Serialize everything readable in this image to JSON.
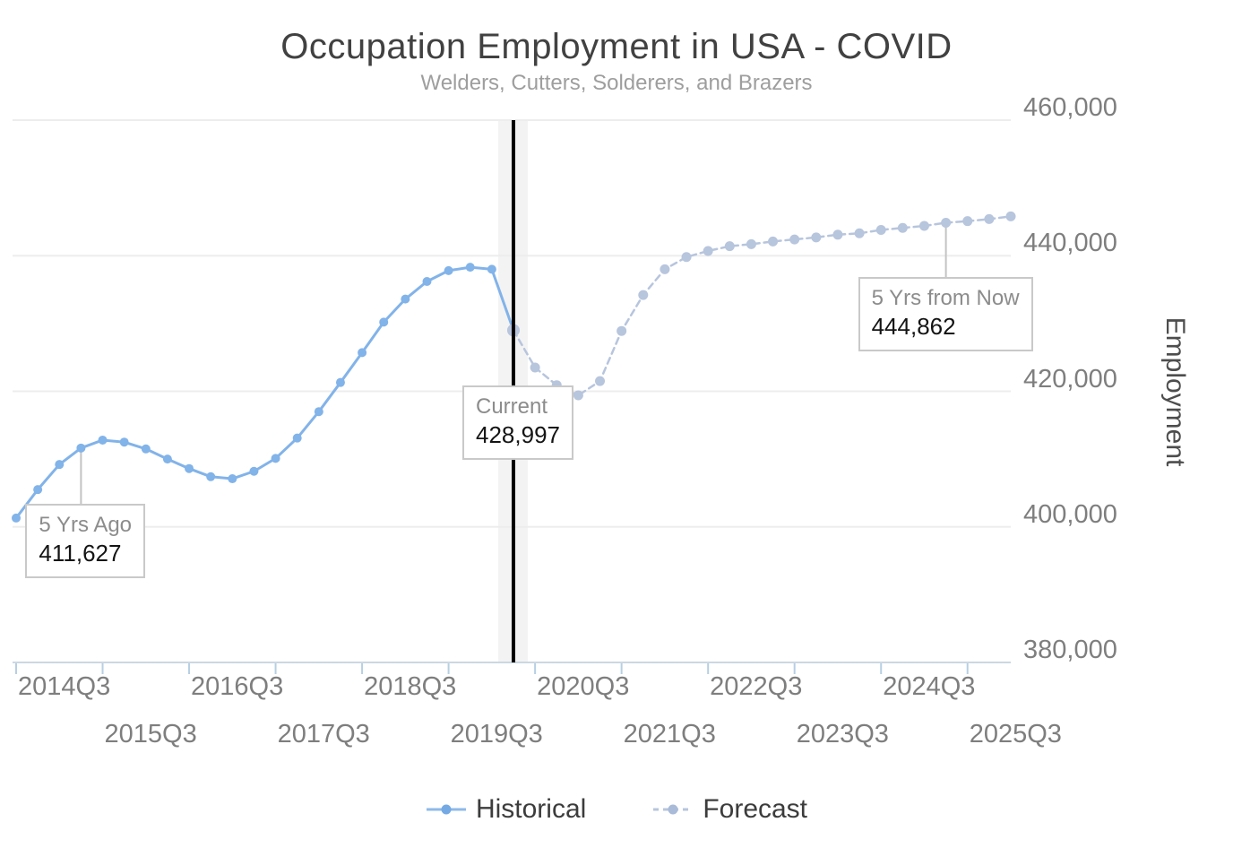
{
  "title": "Occupation Employment in USA - COVID",
  "subtitle": "Welders, Cutters, Solderers, and Brazers",
  "y_axis": {
    "title": "Employment",
    "ticks": [
      {
        "value": 380000,
        "label": "380,000"
      },
      {
        "value": 400000,
        "label": "400,000"
      },
      {
        "value": 420000,
        "label": "420,000"
      },
      {
        "value": 440000,
        "label": "440,000"
      },
      {
        "value": 460000,
        "label": "460,000"
      }
    ]
  },
  "x_axis": {
    "labels": [
      "2014Q3",
      "2015Q3",
      "2016Q3",
      "2017Q3",
      "2018Q3",
      "2019Q3",
      "2020Q3",
      "2021Q3",
      "2022Q3",
      "2023Q3",
      "2024Q3",
      "2025Q3"
    ]
  },
  "legend": [
    {
      "label": "Historical",
      "style": "solid",
      "color": "#82b3e9"
    },
    {
      "label": "Forecast",
      "style": "dashed",
      "color": "#b7c5dd"
    }
  ],
  "annotations": [
    {
      "id": "five-yrs-ago",
      "label": "5 Yrs Ago",
      "value": "411,627",
      "value_num": 411627,
      "anchor_index": 3
    },
    {
      "id": "current",
      "label": "Current",
      "value": "428,997",
      "value_num": 428997,
      "anchor_index": 23
    },
    {
      "id": "five-yrs-from-now",
      "label": "5 Yrs from Now",
      "value": "444,862",
      "value_num": 444862,
      "anchor_index": 43
    }
  ],
  "colors": {
    "historical_line": "#82b3e9",
    "forecast_line": "#b7c5dd",
    "gridline": "#ededed",
    "axis_line": "#ccd8e2",
    "axis_tick": "#b7cfe3",
    "current_band": "#f3f3f3",
    "current_line": "#000000",
    "leader_line": "#c3c3c3"
  },
  "chart_data": {
    "type": "line",
    "title": "Occupation Employment in USA - COVID",
    "subtitle": "Welders, Cutters, Solderers, and Brazers",
    "xlabel": "",
    "ylabel": "Employment",
    "ylim": [
      380000,
      460000
    ],
    "ytick_step": 20000,
    "grid": true,
    "legend_position": "bottom",
    "current_index": 23,
    "x_quarters": [
      "2014Q3",
      "2014Q4",
      "2015Q1",
      "2015Q2",
      "2015Q3",
      "2015Q4",
      "2016Q1",
      "2016Q2",
      "2016Q3",
      "2016Q4",
      "2017Q1",
      "2017Q2",
      "2017Q3",
      "2017Q4",
      "2018Q1",
      "2018Q2",
      "2018Q3",
      "2018Q4",
      "2019Q1",
      "2019Q2",
      "2019Q3",
      "2019Q4",
      "2020Q1",
      "2020Q2",
      "2020Q3",
      "2020Q4",
      "2021Q1",
      "2021Q2",
      "2021Q3",
      "2021Q4",
      "2022Q1",
      "2022Q2",
      "2022Q3",
      "2022Q4",
      "2023Q1",
      "2023Q2",
      "2023Q3",
      "2023Q4",
      "2024Q1",
      "2024Q2",
      "2024Q3",
      "2024Q4",
      "2025Q1",
      "2025Q2",
      "2025Q3",
      "2025Q4",
      "2026Q1"
    ],
    "series": [
      {
        "name": "Historical",
        "style": "solid",
        "color": "#82b3e9",
        "start_index": 0,
        "values": [
          401300,
          405500,
          409200,
          411627,
          412800,
          412500,
          411500,
          410000,
          408600,
          407400,
          407100,
          408200,
          410100,
          413100,
          417000,
          421300,
          425700,
          430200,
          433600,
          436200,
          437800,
          438300,
          438000,
          428997
        ]
      },
      {
        "name": "Forecast",
        "style": "dashed",
        "color": "#b7c5dd",
        "start_index": 23,
        "values": [
          428997,
          423500,
          420900,
          419400,
          421500,
          428900,
          434200,
          438000,
          439800,
          440700,
          441400,
          441700,
          442100,
          442400,
          442700,
          443100,
          443300,
          443800,
          444100,
          444400,
          444862,
          445100,
          445400,
          445800
        ]
      }
    ]
  }
}
